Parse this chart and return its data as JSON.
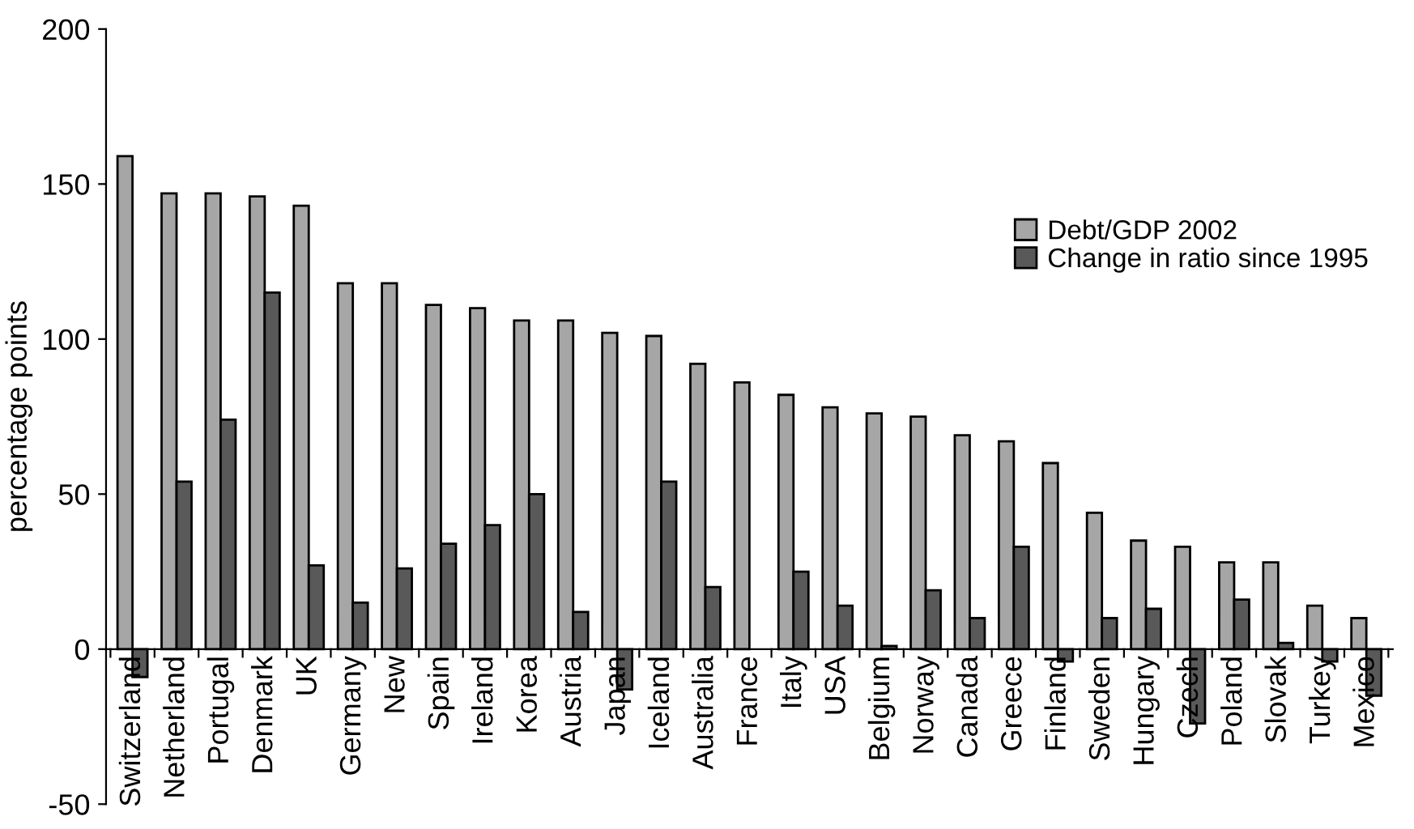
{
  "chart_data": {
    "type": "bar",
    "ylabel": "percentage points",
    "categories": [
      "Switzerland",
      "Netherland",
      "Portugal",
      "Denmark",
      "UK",
      "Germany",
      "New",
      "Spain",
      "Ireland",
      "Korea",
      "Austria",
      "Japan",
      "Iceland",
      "Australia",
      "France",
      "Italy",
      "USA",
      "Belgium",
      "Norway",
      "Canada",
      "Greece",
      "Finland",
      "Sweden",
      "Hungary",
      "Czech",
      "Poland",
      "Slovak",
      "Turkey",
      "Mexico"
    ],
    "series": [
      {
        "name": "Debt/GDP 2002",
        "color": "#a6a6a6",
        "values": [
          159,
          147,
          147,
          146,
          143,
          118,
          118,
          111,
          110,
          106,
          106,
          102,
          101,
          92,
          86,
          82,
          78,
          76,
          75,
          69,
          67,
          60,
          44,
          35,
          33,
          28,
          28,
          14,
          10
        ]
      },
      {
        "name": "Change in ratio since 1995",
        "color": "#595959",
        "values": [
          -9,
          54,
          74,
          115,
          27,
          15,
          26,
          34,
          40,
          50,
          12,
          -13,
          54,
          20,
          null,
          25,
          14,
          1,
          19,
          10,
          33,
          -4,
          10,
          13,
          -24,
          16,
          2,
          -4,
          -15
        ]
      }
    ],
    "ylim": [
      -50,
      200
    ],
    "yticks": [
      -50,
      0,
      50,
      100,
      150,
      200
    ],
    "grid": false,
    "legend": "right"
  }
}
